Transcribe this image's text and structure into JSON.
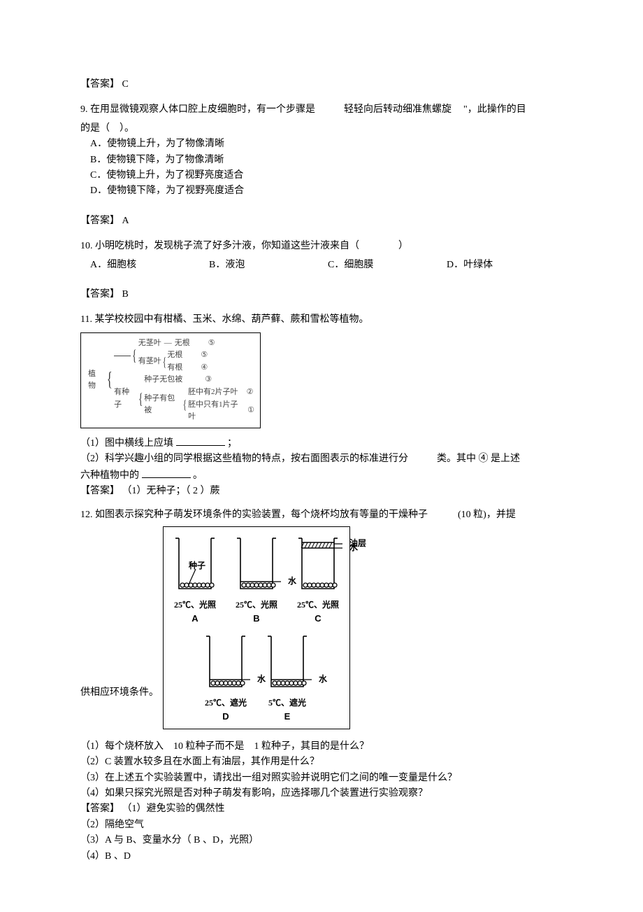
{
  "answers": {
    "label_prefix": "【答案】",
    "q8": "C",
    "q9": "A",
    "q10": "B"
  },
  "q9": {
    "stem_a": "9. 在用显微镜观察人体口腔上皮细胞时，有一个步骤是",
    "stem_b": "轻轻向后转动细准焦螺旋",
    "stem_c": "\"，此操作的目",
    "stem_d": "的是（　）。",
    "optA": "A．使物镜上升，为了物像清晰",
    "optB": "B．使物镜下降，为了物像清晰",
    "optC": "C．使物镜上升，为了视野亮度适合",
    "optD": "D．使物镜下降，为了视野亮度适合"
  },
  "q10": {
    "stem": "10. 小明吃桃时，发现桃子流了好多汁液，你知道这些汁液来自（　　　　）",
    "optA": "A．细胞核",
    "optB": "B．液泡",
    "optC": "C．细胞膜",
    "optD": "D．叶绿体"
  },
  "q11": {
    "stem": "11. 某学校校园中有柑橘、玉米、水绵、葫芦藓、蕨和雪松等植物。",
    "diagram": {
      "root": "植物",
      "branch_no_seed_label": "无茎叶",
      "leaf1": "无根",
      "c1": "⑤",
      "branch_has_stem": "有茎叶",
      "leaf2": "无根",
      "c2": "⑤",
      "leaf3": "有根",
      "c3": "④",
      "has_seed": "有种子",
      "leaf4": "种子无包被",
      "c4": "③",
      "branch_seed_cover": "种子有包被",
      "leaf5": "胚中有2片子叶",
      "c5": "②",
      "leaf6": "胚中只有1片子叶",
      "c6": "①"
    },
    "p1_a": "（1）图中横线上应填",
    "p1_b": "；",
    "p2_a": "（2）科学兴趣小组的同学根据这些植物的特点，按右面图表示的标准进行分",
    "p2_b": "类。其中 ④ 是上述",
    "p2_c": "六种植物中的",
    "p2_d": "。",
    "ans": "【答案】 （1）无种子；（ 2 ）蕨"
  },
  "q12": {
    "stem_a": "12. 如图表示探究种子萌发环境条件的实验装置，每个烧杯均放有等量的干燥种子",
    "stem_b": "(10 粒)，并提",
    "supply": "供相应环境条件。",
    "beakers": {
      "top": [
        {
          "letter": "A",
          "cond": "25℃、光照",
          "water": "none",
          "oil": false
        },
        {
          "letter": "B",
          "cond": "25℃、光照",
          "water": "low",
          "oil": false
        },
        {
          "letter": "C",
          "cond": "25℃、光照",
          "water": "high",
          "oil": true
        }
      ],
      "bottom": [
        {
          "letter": "D",
          "cond": "25℃、遮光",
          "water": "low",
          "oil": false
        },
        {
          "letter": "E",
          "cond": "5℃、遮光",
          "water": "low",
          "oil": false
        }
      ],
      "labels": {
        "oil": "油层",
        "seed": "种子",
        "water": "水"
      }
    },
    "p1": "（1）每个烧杯放入　10 粒种子而不是　1 粒种子，其目的是什么？",
    "p2": "（2）C 装置水较多且在水面上有油层，其作用是什么？",
    "p3": "（3）在上述五个实验装置中，请找出一组对照实验并说明它们之间的唯一变量是什么？",
    "p4": "（4）如果只探究光照是否对种子萌发有影响，应选择哪几个装置进行实验观察？",
    "ans_h": "【答案】 （1）避免实验的偶然性",
    "ans2": "（2）隔绝空气",
    "ans3": "（3）A 与 B、变量水分（ B 、D，光照）",
    "ans4": "（4）B 、D"
  },
  "style": {
    "blank_w1": 70,
    "blank_w2": 70
  }
}
